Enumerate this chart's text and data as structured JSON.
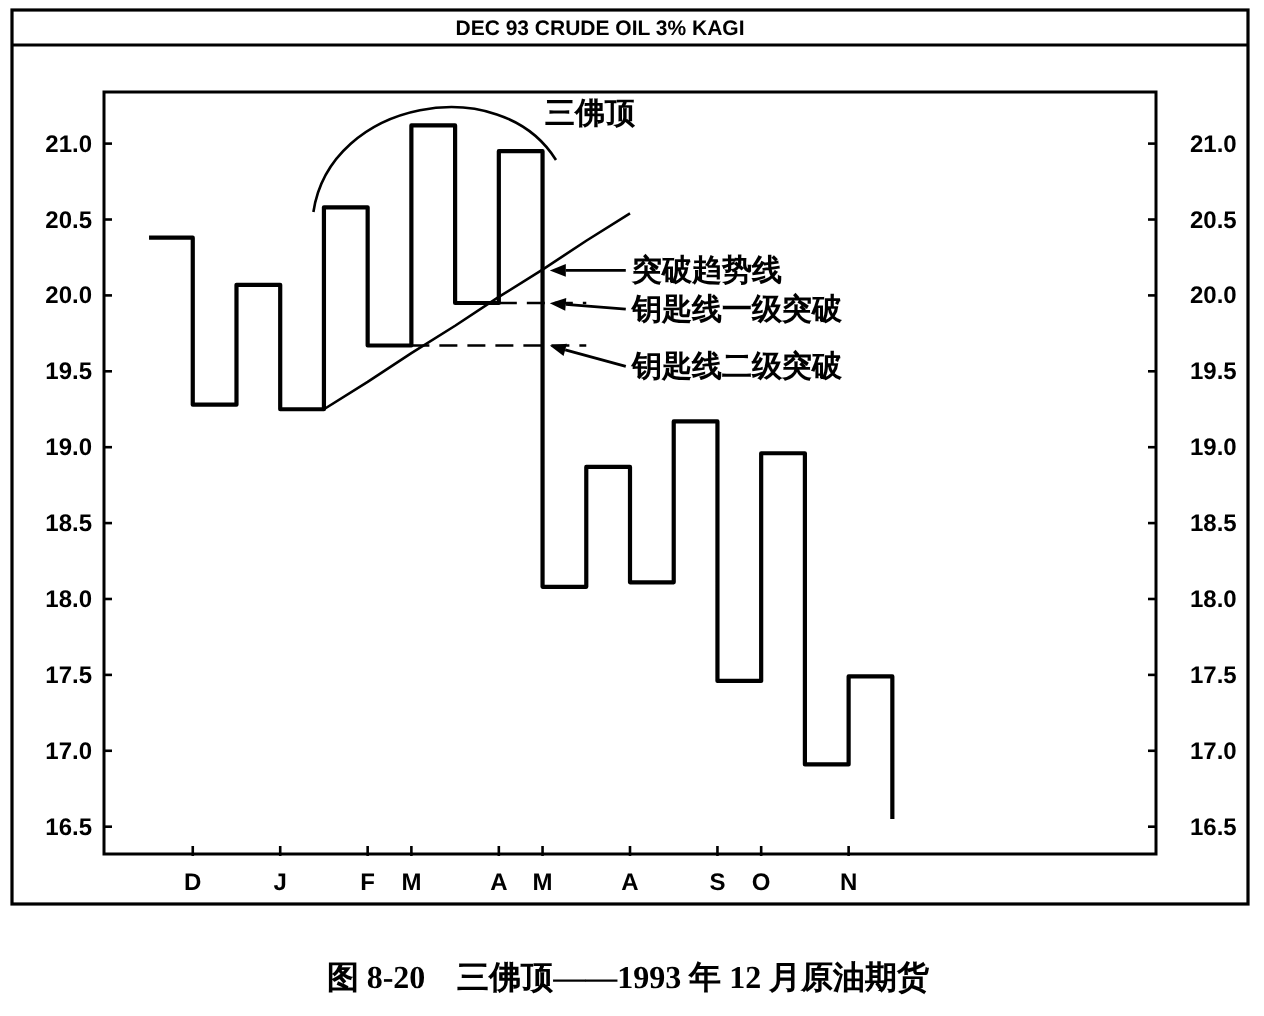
{
  "chart_data": {
    "type": "step",
    "title": "DEC 93 CRUDE OIL 3% KAGI",
    "categories": [
      null,
      "D",
      null,
      "J",
      null,
      "F",
      "M",
      null,
      "A",
      "M",
      null,
      "A",
      null,
      "S",
      "O",
      null,
      "N",
      null,
      null,
      null,
      null,
      null,
      null
    ],
    "ylim": [
      16.32,
      21.34
    ],
    "yticks": [
      16.5,
      {
        "value": 17,
        "label": "17.0"
      },
      17.5,
      {
        "value": 18,
        "label": "18.0"
      },
      18.5,
      {
        "value": 19,
        "label": "19.0"
      },
      19.5,
      {
        "value": 20,
        "label": "20.0"
      },
      20.5,
      {
        "value": 21,
        "label": "21.0"
      }
    ],
    "y2lim": [
      16.32,
      21.34
    ],
    "y2ticks": [
      16.5,
      {
        "value": 17,
        "label": "17.0"
      },
      17.5,
      {
        "value": 18,
        "label": "18.0"
      },
      18.5,
      {
        "value": 19,
        "label": "19.0"
      },
      19.5,
      {
        "value": 20,
        "label": "20.0"
      },
      20.5,
      {
        "value": 21,
        "label": "21.0"
      }
    ],
    "series": [
      {
        "color": "#000000",
        "values": [
          20.38,
          19.28,
          20.07,
          19.25,
          20.58,
          19.67,
          21.12,
          19.95,
          20.95,
          18.08,
          18.87,
          18.11,
          19.17,
          17.46,
          18.96,
          16.91,
          17.49,
          16.55,
          null,
          null,
          null,
          null,
          null
        ]
      },
      {
        "type": "line",
        "color": "#000000",
        "values": [
          null,
          null,
          null,
          null,
          19.25,
          19.43,
          19.62,
          19.8,
          19.99,
          20.17,
          20.36,
          20.54,
          null,
          null,
          null,
          null,
          null,
          null,
          null,
          null,
          null,
          null,
          null
        ]
      },
      {
        "type": "line",
        "color": "#000000",
        "line_style": "dashed",
        "values": [
          null,
          null,
          null,
          null,
          null,
          null,
          null,
          null,
          19.95,
          19.95,
          19.95,
          null,
          null,
          null,
          null,
          null,
          null,
          null,
          null,
          null,
          null,
          null,
          null
        ]
      },
      {
        "type": "line",
        "color": "#000000",
        "line_style": "dashed",
        "values": [
          null,
          null,
          null,
          null,
          null,
          null,
          19.67,
          19.67,
          19.67,
          19.67,
          19.67,
          null,
          null,
          null,
          null,
          null,
          null,
          null,
          null,
          null,
          null,
          null,
          null
        ]
      }
    ],
    "annotations": [
      "三佛顶",
      "突破趋势线",
      "钥匙线一级突破",
      "钥匙线二级突破",
      "图 8-20　三佛顶——1993 年 12 月原油期货"
    ]
  }
}
